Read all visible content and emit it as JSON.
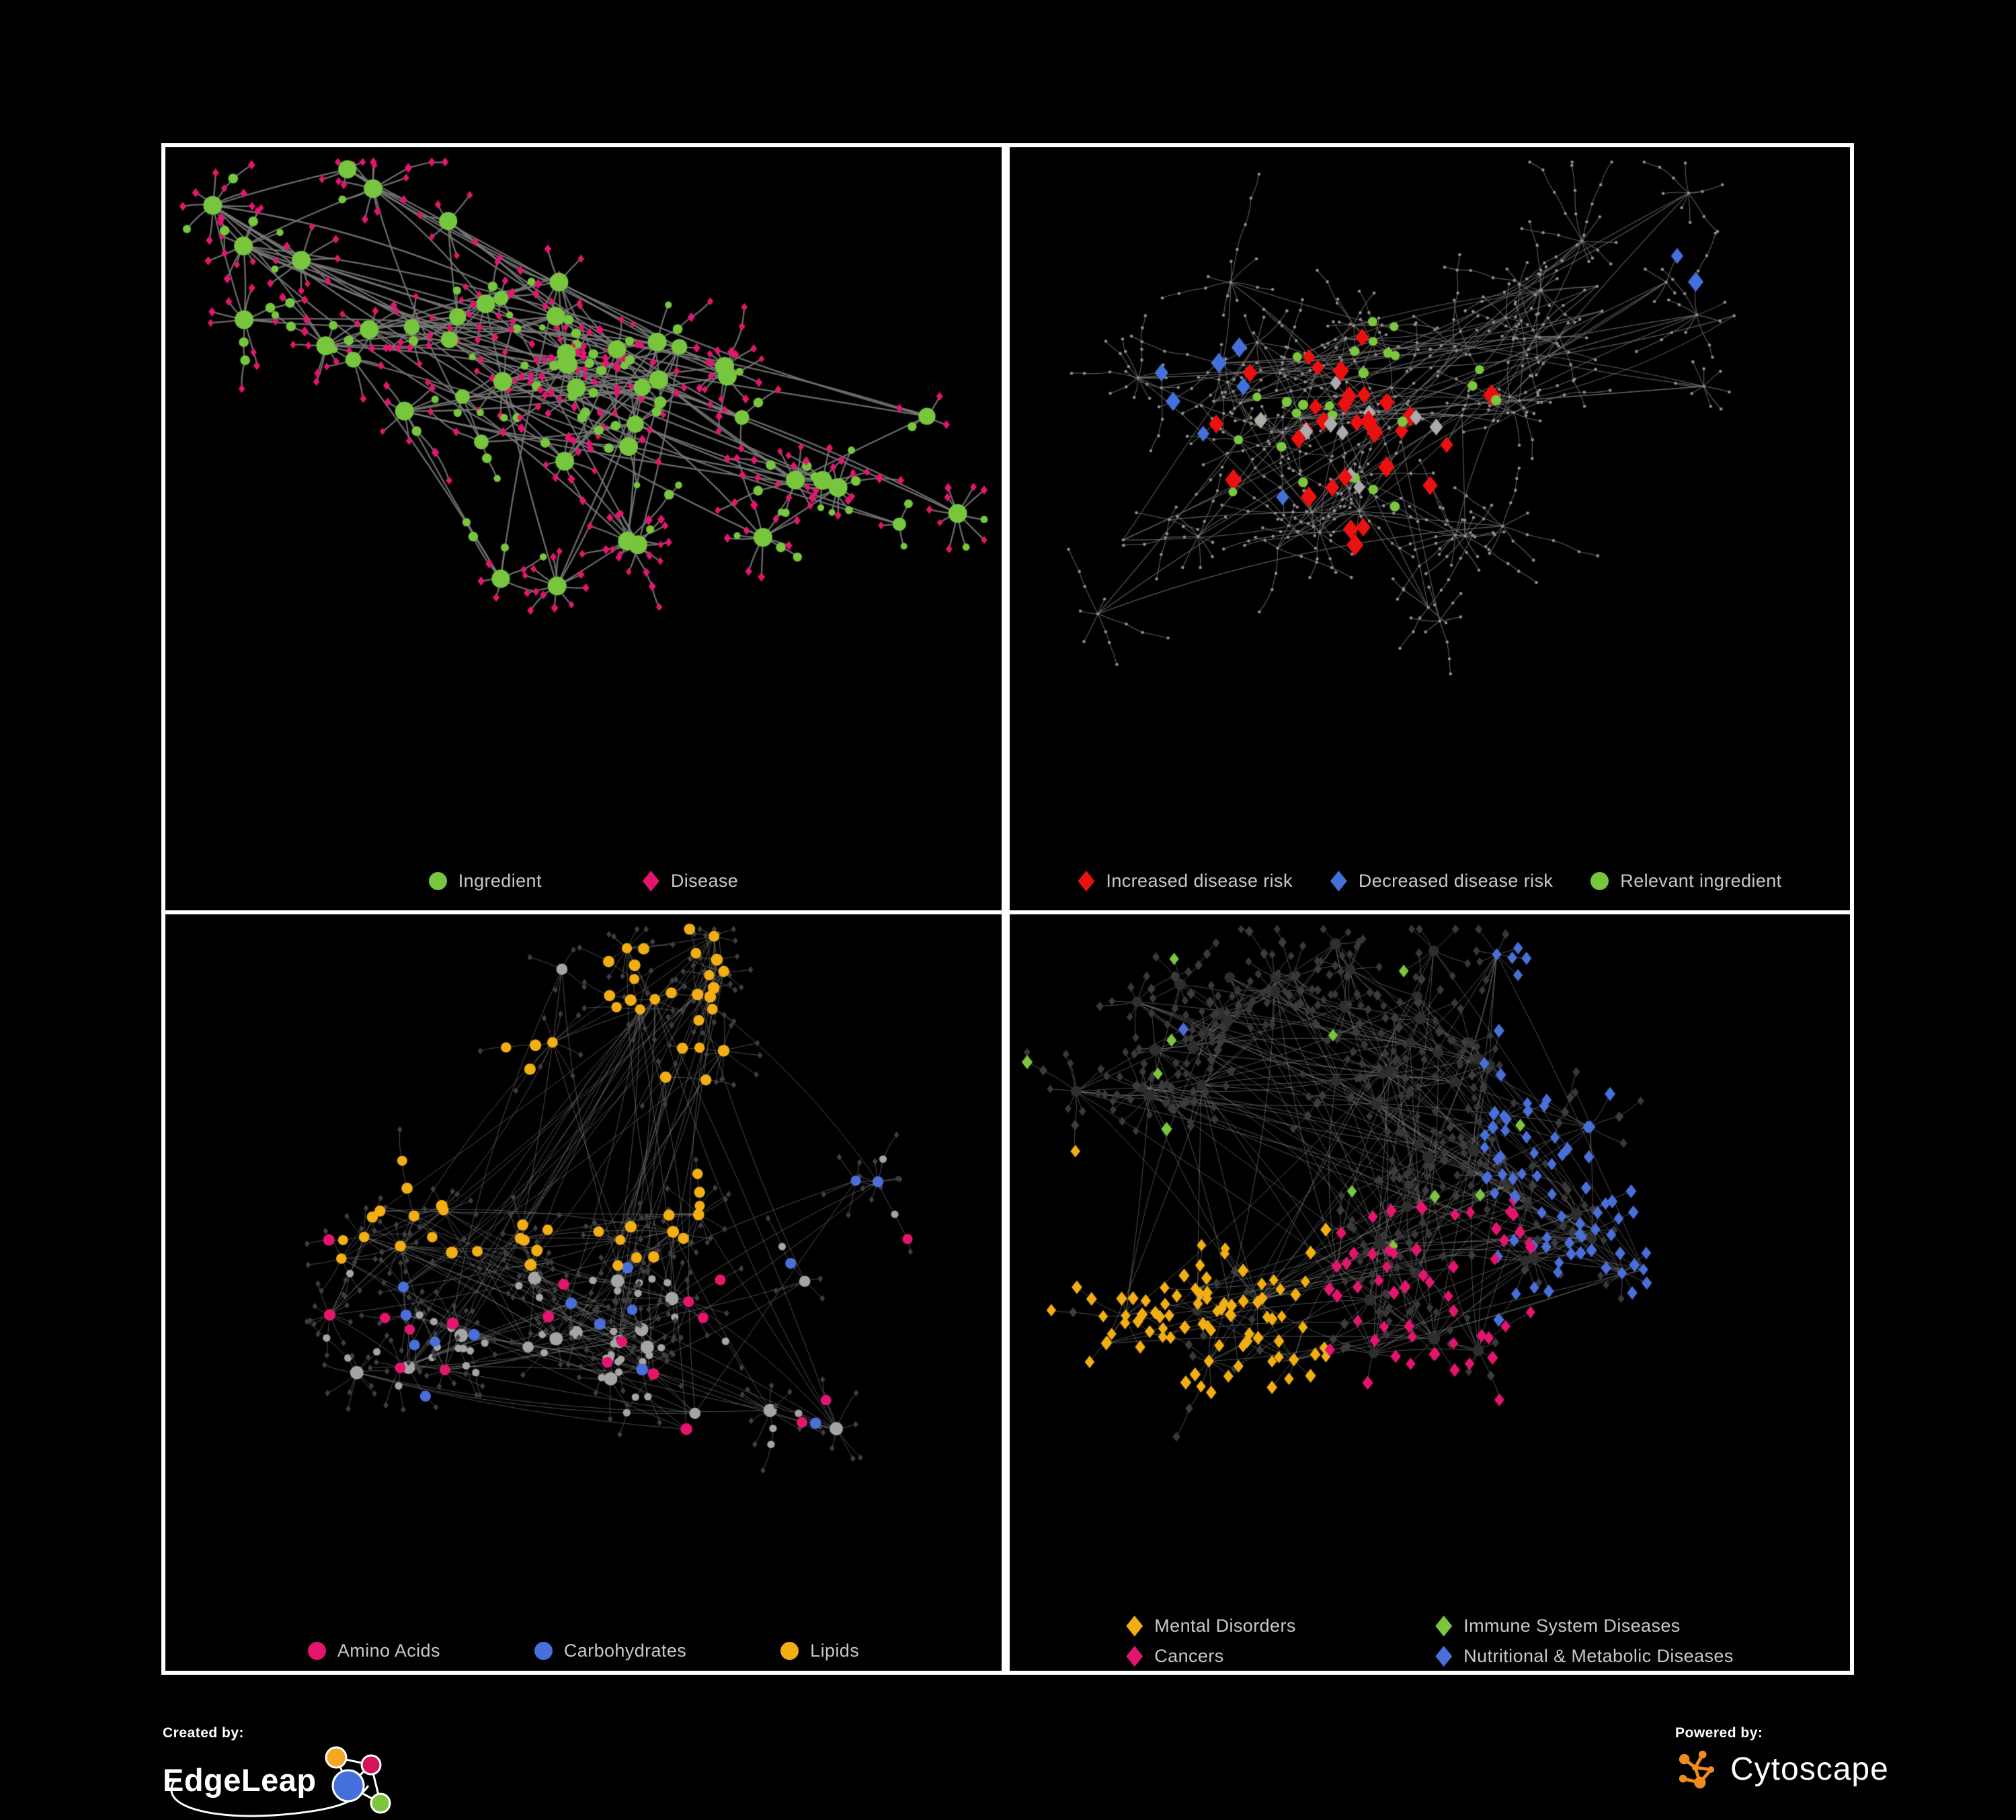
{
  "page": {
    "background": "#000000",
    "panel_border_color": "#ffffff",
    "legend_text_color": "#C8C8C8"
  },
  "panels": [
    {
      "name": "ingredient-disease-network",
      "legend": [
        {
          "label": "Ingredient",
          "shape": "circle",
          "color": "#77C63E"
        },
        {
          "label": "Disease",
          "shape": "diamond",
          "color": "#E4156F"
        }
      ],
      "network": {
        "style": "p1",
        "seed": 7,
        "clusters": 8,
        "hubs_per_cluster": 6,
        "cluster_spread": 330,
        "extra_edges": 50,
        "burst_prob": 0.85,
        "leaf_min": 3,
        "leaf_var": 8,
        "chain_prob": 0.35,
        "chain_max": 3,
        "leaf_dist": 42,
        "edge_color": "rgba(120,120,120,0.9)",
        "edge_width": 2.3,
        "colors": {
          "ingredient": "#77C63E",
          "disease": "#E4156F"
        }
      }
    },
    {
      "name": "disease-risk-network",
      "legend": [
        {
          "label": "Increased disease risk",
          "shape": "diamond",
          "color": "#EB1111"
        },
        {
          "label": "Decreased disease risk",
          "shape": "diamond",
          "color": "#4470DB"
        },
        {
          "label": "Relevant ingredient",
          "shape": "circle",
          "color": "#77C63E"
        }
      ],
      "network": {
        "style": "p2",
        "seed": 21,
        "clusters": 11,
        "hubs_per_cluster": 5,
        "cluster_spread": 300,
        "extra_edges": 30,
        "burst_prob": 0.9,
        "leaf_min": 4,
        "leaf_var": 8,
        "chain_prob": 0.6,
        "chain_max": 4,
        "leaf_dist": 36,
        "edge_color": "rgba(110,110,110,0.85)",
        "edge_width": 1.1,
        "base_color": "#8F8F8F",
        "overlays": {
          "increased": {
            "count": 30,
            "color": "#EB1111"
          },
          "decreased": {
            "count": 9,
            "color": "#4470DB"
          },
          "neutral": {
            "count": 10,
            "color": "#ABABAB"
          },
          "ingredient": {
            "count": 26,
            "color": "#7CC63E"
          }
        }
      }
    },
    {
      "name": "nutrient-class-network",
      "legend": [
        {
          "label": "Amino Acids",
          "shape": "circle",
          "color": "#E4156F"
        },
        {
          "label": "Carbohydrates",
          "shape": "circle",
          "color": "#4A6FD9"
        },
        {
          "label": "Lipids",
          "shape": "circle",
          "color": "#F2AE13"
        }
      ],
      "network": {
        "style": "p3",
        "seed": 33,
        "clusters": 9,
        "hubs_per_cluster": 6,
        "cluster_spread": 300,
        "extra_edges": 90,
        "burst_prob": 0.85,
        "leaf_min": 4,
        "leaf_var": 8,
        "chain_prob": 0.3,
        "chain_max": 3,
        "leaf_dist": 42,
        "edge_color": "rgba(150,150,150,0.5)",
        "edge_width": 1.0,
        "base_leaf_color": "#3F3F3F",
        "base_node_color": "#A5A5A5",
        "overlays": {
          "lipids": {
            "count": 64,
            "color": "#F2AE13"
          },
          "carbohydrates": {
            "count": 15,
            "color": "#4A6FD9"
          },
          "amino_acids": {
            "count": 19,
            "color": "#E4156F"
          }
        }
      }
    },
    {
      "name": "disease-category-network",
      "legend": [
        {
          "label": "Mental Disorders",
          "shape": "diamond",
          "color": "#F2AE13"
        },
        {
          "label": "Immune System Diseases",
          "shape": "diamond",
          "color": "#7CC63E"
        },
        {
          "label": "Cancers",
          "shape": "diamond",
          "color": "#E4156F"
        },
        {
          "label": "Nutritional & Metabolic Diseases",
          "shape": "diamond",
          "color": "#4A6FD9"
        }
      ],
      "network": {
        "style": "p4",
        "seed": 55,
        "clusters": 12,
        "hubs_per_cluster": 6,
        "cluster_spread": 300,
        "extra_edges": 120,
        "burst_prob": 0.85,
        "leaf_min": 4,
        "leaf_var": 7,
        "chain_prob": 0.35,
        "chain_max": 3,
        "leaf_dist": 40,
        "edge_color": "rgba(140,140,140,0.55)",
        "edge_width": 1.0,
        "base_leaf_color": "#383838",
        "base_node_color": "#2E2E2E",
        "overlays": {
          "mental": {
            "count": 85,
            "color": "#F2AE13"
          },
          "immune": {
            "count": 12,
            "color": "#7CC63E"
          },
          "cancers": {
            "count": 55,
            "color": "#E4156F"
          },
          "nutritional": {
            "count": 80,
            "color": "#4A6FD9"
          }
        }
      }
    }
  ],
  "footer": {
    "created_by_label": "Created by:",
    "edgeleap_brand": "EdgeLeap",
    "powered_by_label": "Powered by:",
    "cytoscape_brand": "Cytoscape",
    "edgeleap_logo_colors": {
      "orange": "#F5A623",
      "pink": "#D4145A",
      "blue": "#4470DB",
      "green": "#7CC63E"
    },
    "cytoscape_logo_color": "#EF8B1F"
  }
}
